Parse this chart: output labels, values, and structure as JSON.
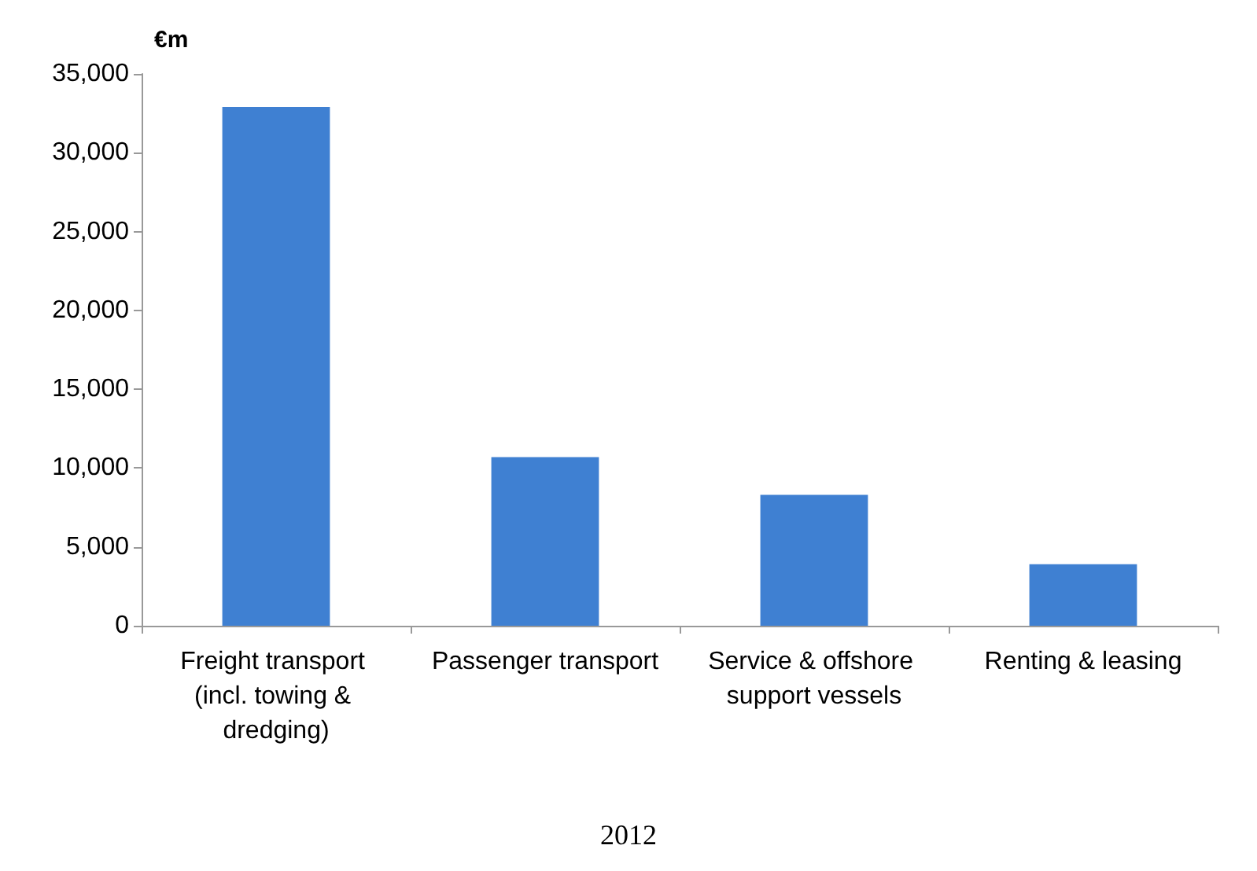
{
  "chart_data": {
    "type": "bar",
    "ylabel": "€m",
    "annotations": [
      "2012"
    ],
    "categories": [
      "Freight transport (incl. towing & dredging)",
      "Passenger transport",
      "Service & offshore support vessels",
      "Renting & leasing"
    ],
    "values": [
      32900,
      10700,
      8300,
      3900
    ],
    "color": "#3f80d2",
    "ylim": [
      0,
      35000
    ],
    "yticks": [
      0,
      {
        "value": 5000,
        "label": "5,000"
      },
      {
        "value": 10000,
        "label": "10,000"
      },
      {
        "value": 15000,
        "label": "15,000"
      },
      {
        "value": 20000,
        "label": "20,000"
      },
      {
        "value": 25000,
        "label": "25,000"
      },
      {
        "value": 30000,
        "label": "30,000"
      },
      {
        "value": 35000,
        "label": "35,000"
      }
    ],
    "grid": false
  }
}
